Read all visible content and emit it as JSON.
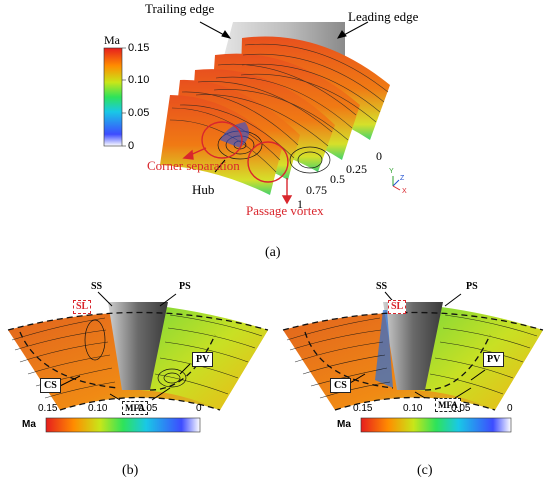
{
  "panel_a": {
    "caption": "(a)",
    "legend_title": "Ma",
    "legend_ticks": [
      "0.15",
      "0.10",
      "0.05",
      "0"
    ],
    "trailing_edge": "Trailing edge",
    "leading_edge": "Leading edge",
    "corner_separation": "Corner separation",
    "hub": "Hub",
    "passage_vortex": "Passage vortex",
    "stations": [
      "0",
      "0.25",
      "0.5",
      "0.75",
      "1"
    ],
    "axis_y": "Y",
    "axis_z": "Z",
    "axis_x": "X"
  },
  "panel_b": {
    "caption": "(b)",
    "ss": "SS",
    "ps": "PS",
    "sl": "SL",
    "cs": "CS",
    "pv": "PV",
    "mfa": "MFA",
    "bar_title": "Ma",
    "bar_ticks": [
      "0.15",
      "0.10",
      "0.05",
      "0"
    ]
  },
  "panel_c": {
    "caption": "(c)",
    "ss": "SS",
    "ps": "PS",
    "sl": "SL",
    "cs": "CS",
    "pv": "PV",
    "mfa": "MFA",
    "bar_title": "Ma",
    "bar_ticks": [
      "0.15",
      "0.10",
      "0.05",
      "0"
    ]
  },
  "colors": {
    "annotation_red": "#d9262d",
    "colormap": [
      "#ffffff",
      "#3d4cff",
      "#19c8e6",
      "#2ee35a",
      "#c8e619",
      "#ff8c00",
      "#e61e1e"
    ]
  }
}
